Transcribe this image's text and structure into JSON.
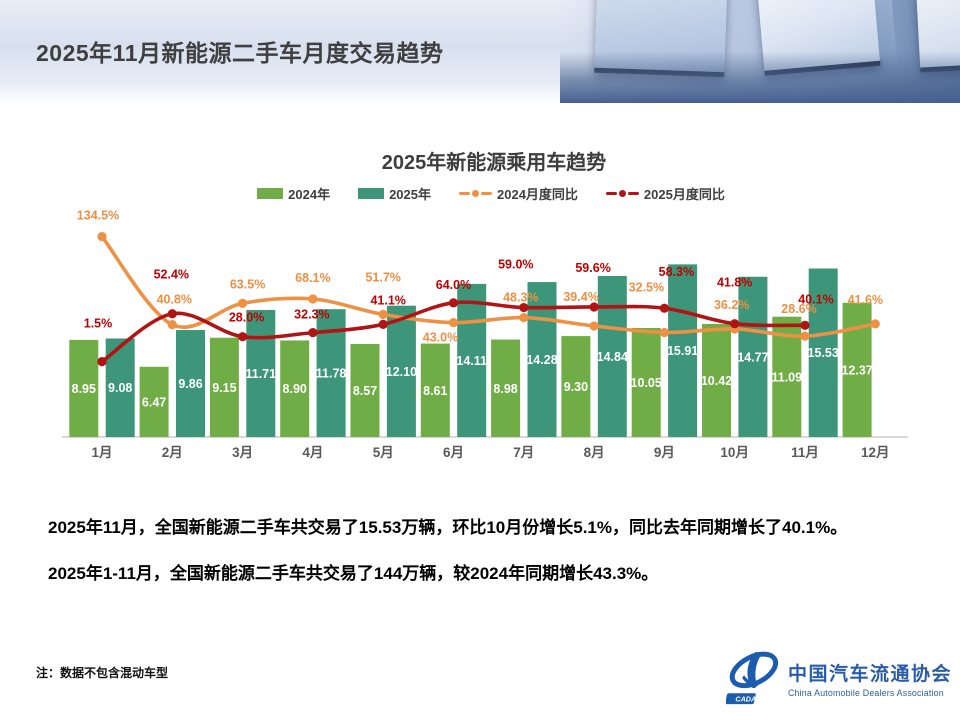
{
  "header": {
    "title": "2025年11月新能源二手车月度交易趋势"
  },
  "chart_data": {
    "type": "bar+line",
    "title": "2025年新能源乘用车趋势",
    "categories": [
      "1月",
      "2月",
      "3月",
      "4月",
      "5月",
      "6月",
      "7月",
      "8月",
      "9月",
      "10月",
      "11月",
      "12月"
    ],
    "series": [
      {
        "name": "2024年",
        "type": "bar",
        "color": "#70AD47",
        "values": [
          8.95,
          6.47,
          9.15,
          8.9,
          8.57,
          8.61,
          8.98,
          9.3,
          10.05,
          10.42,
          11.09,
          12.37
        ]
      },
      {
        "name": "2025年",
        "type": "bar",
        "color": "#3D9679",
        "values": [
          9.08,
          9.86,
          11.71,
          11.78,
          12.1,
          14.11,
          14.28,
          14.84,
          15.91,
          14.77,
          15.53,
          null
        ]
      },
      {
        "name": "2024月度同比",
        "type": "line",
        "unit": "%",
        "color": "#ED9144",
        "label_color": "#ED8F44",
        "values": [
          134.5,
          40.8,
          63.5,
          68.1,
          51.7,
          43.0,
          48.3,
          39.4,
          32.5,
          36.2,
          28.6,
          41.6
        ]
      },
      {
        "name": "2025月度同比",
        "type": "line",
        "unit": "%",
        "color": "#B11414",
        "label_color": "#C00000",
        "values": [
          1.5,
          52.4,
          28.0,
          32.3,
          41.1,
          64.0,
          59.0,
          59.6,
          58.3,
          41.8,
          40.1,
          null
        ]
      }
    ],
    "legend_position": "top",
    "grid": false,
    "axis_color": "#D9D9D9",
    "month_label_color": "#595959"
  },
  "body": {
    "line1": "2025年11月，全国新能源二手车共交易了15.53万辆，环比10月份增长5.1%，同比去年同期增长了40.1%。",
    "line2": "2025年1-11月，全国新能源二手车共交易了144万辆，较2024年同期增长43.3%。"
  },
  "footer": {
    "note": "注：数据不包含混动车型",
    "logo": {
      "cn": "中国汽车流通协会",
      "en": "China Automobile Dealers Association",
      "badge": "CADA"
    }
  }
}
